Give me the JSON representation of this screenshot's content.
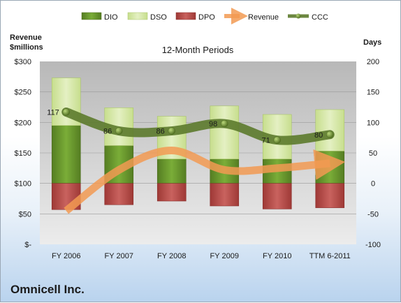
{
  "company": "Omnicell Inc.",
  "chart_data": {
    "type": "bar",
    "title": "12-Month Periods",
    "left_axis_title": [
      "Revenue",
      "$millions"
    ],
    "right_axis_title": "Days",
    "categories": [
      "FY 2006",
      "FY 2007",
      "FY 2008",
      "FY 2009",
      "FY 2010",
      "TTM 6-2011"
    ],
    "left_ticks": [
      "$300",
      "$250",
      "$200",
      "$150",
      "$100",
      "$50",
      "$-"
    ],
    "right_ticks": [
      "200",
      "150",
      "100",
      "50",
      "0",
      "-50",
      "-100"
    ],
    "left_range": [
      0,
      300
    ],
    "right_range": [
      -100,
      200
    ],
    "legend_position": "top",
    "series": [
      {
        "name": "DIO",
        "type": "stacked-bar",
        "color": "#6b9a2e",
        "values": [
          95,
          62,
          40,
          40,
          40,
          53
        ]
      },
      {
        "name": "DSO",
        "type": "stacked-bar",
        "color": "#d6e8a9",
        "values": [
          78,
          62,
          70,
          87,
          73,
          68
        ]
      },
      {
        "name": "DPO",
        "type": "stacked-bar-negative",
        "color": "#c0504d",
        "values": [
          -43,
          -35,
          -29,
          -37,
          -42,
          -40
        ]
      },
      {
        "name": "Revenue",
        "type": "line",
        "axis": "left",
        "color": "#f29a52",
        "values": [
          55,
          122,
          154,
          122,
          125,
          133
        ]
      },
      {
        "name": "CCC",
        "type": "line",
        "axis": "right",
        "color": "#5c7a2c",
        "values": [
          117,
          86,
          86,
          98,
          71,
          80
        ],
        "labels": [
          "117",
          "86",
          "86",
          "98",
          "71",
          "80"
        ]
      }
    ]
  }
}
